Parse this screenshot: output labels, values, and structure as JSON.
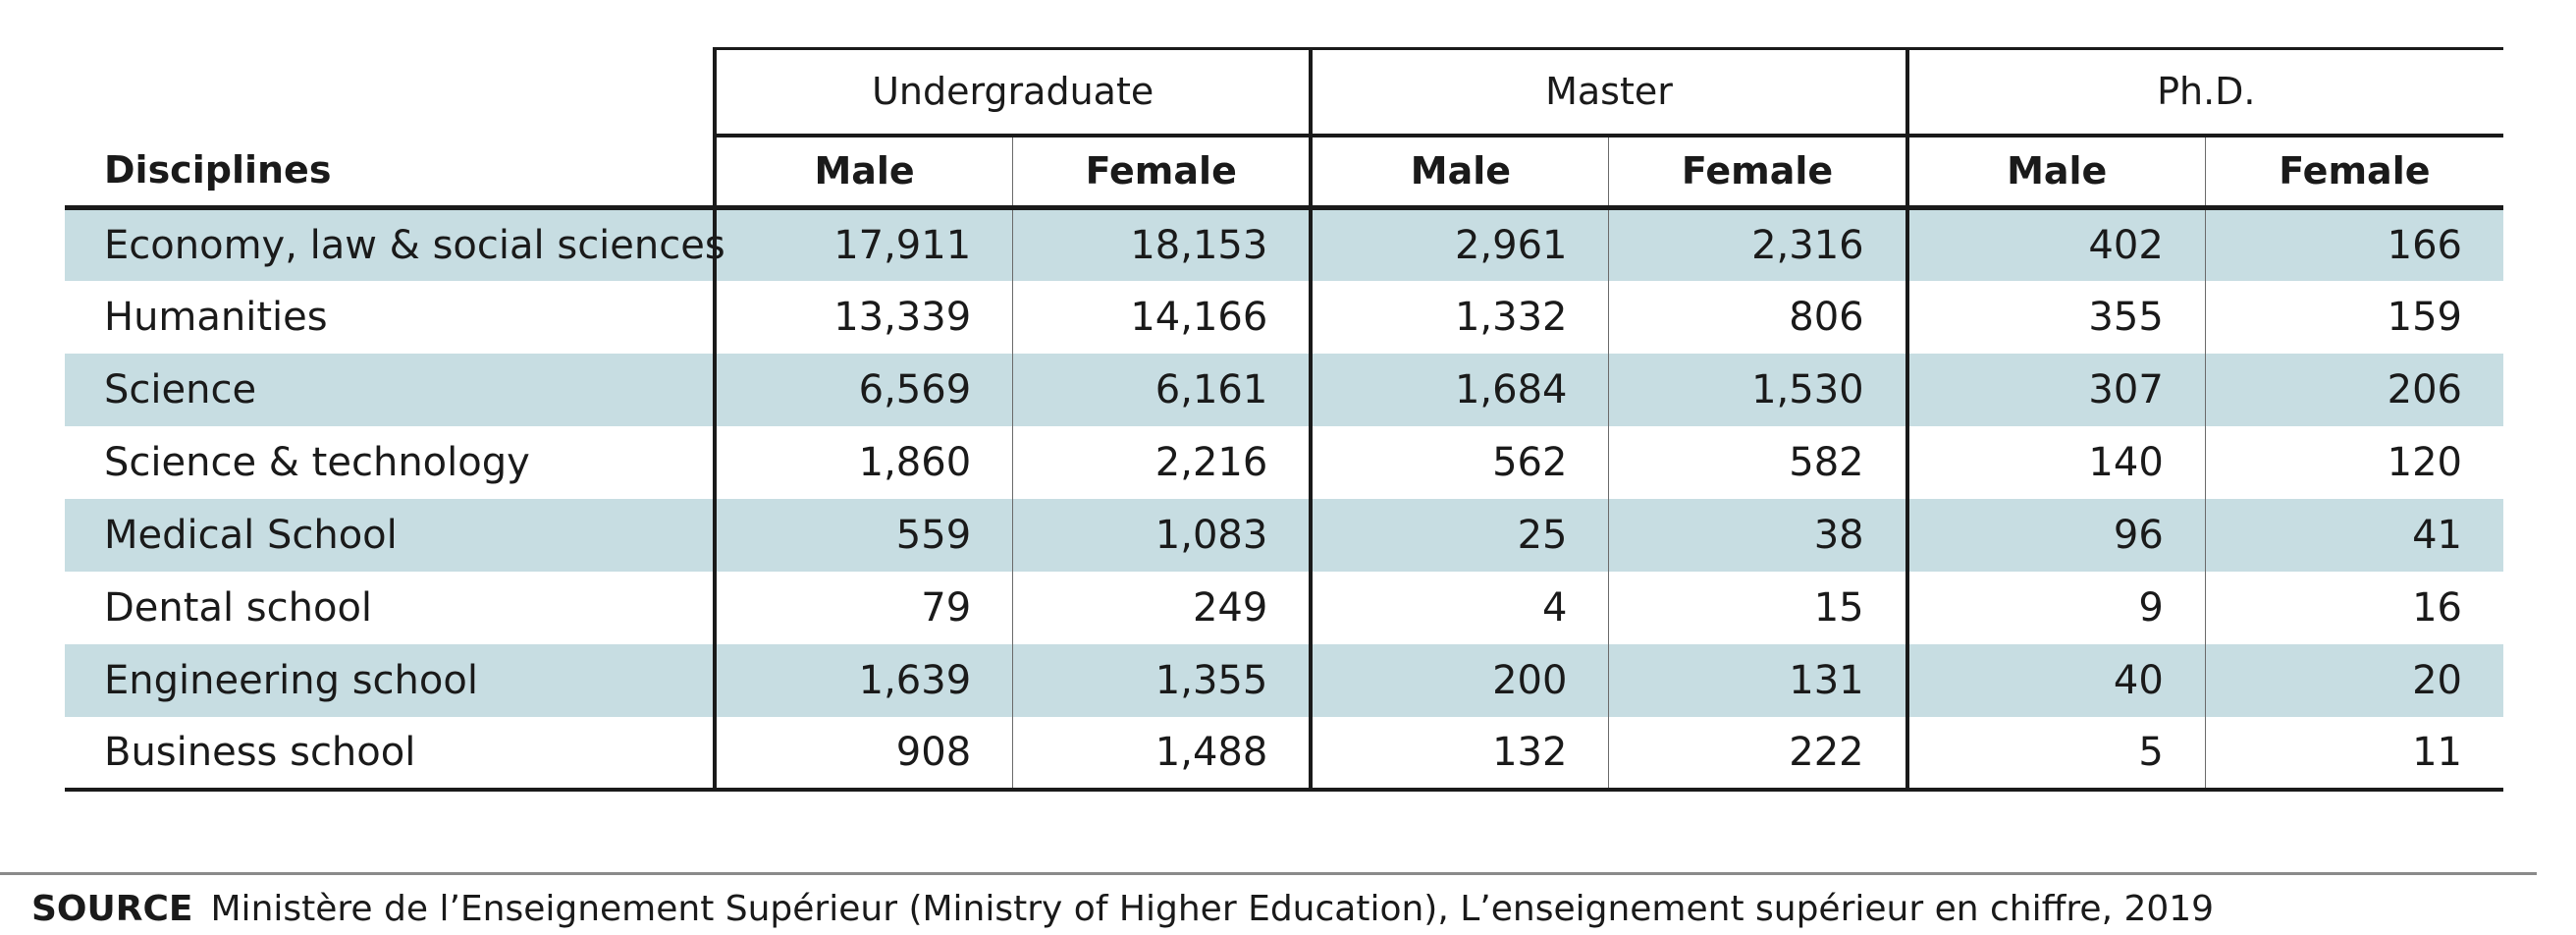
{
  "chart_data": {
    "type": "table",
    "row_header": "Disciplines",
    "groups": [
      "Undergraduate",
      "Master",
      "Ph.D."
    ],
    "subcolumns": [
      "Male",
      "Female"
    ],
    "rows": [
      {
        "discipline": "Economy, law & social sciences",
        "values": [
          "17,911",
          "18,153",
          "2,961",
          "2,316",
          "402",
          "166"
        ]
      },
      {
        "discipline": "Humanities",
        "values": [
          "13,339",
          "14,166",
          "1,332",
          "806",
          "355",
          "159"
        ]
      },
      {
        "discipline": "Science",
        "values": [
          "6,569",
          "6,161",
          "1,684",
          "1,530",
          "307",
          "206"
        ]
      },
      {
        "discipline": "Science & technology",
        "values": [
          "1,860",
          "2,216",
          "562",
          "582",
          "140",
          "120"
        ]
      },
      {
        "discipline": "Medical School",
        "values": [
          "559",
          "1,083",
          "25",
          "38",
          "96",
          "41"
        ]
      },
      {
        "discipline": "Dental school",
        "values": [
          "79",
          "249",
          "4",
          "15",
          "9",
          "16"
        ]
      },
      {
        "discipline": "Engineering school",
        "values": [
          "1,639",
          "1,355",
          "200",
          "131",
          "40",
          "20"
        ]
      },
      {
        "discipline": "Business school",
        "values": [
          "908",
          "1,488",
          "132",
          "222",
          "5",
          "11"
        ]
      }
    ],
    "colors": {
      "shaded_row": "#c7dde2",
      "rule": "#1a1a1a"
    }
  },
  "source": {
    "label": "SOURCE",
    "text": "Ministère de l’Enseignement Supérieur (Ministry of Higher Education), L’enseignement supérieur en chiffre, 2019"
  }
}
